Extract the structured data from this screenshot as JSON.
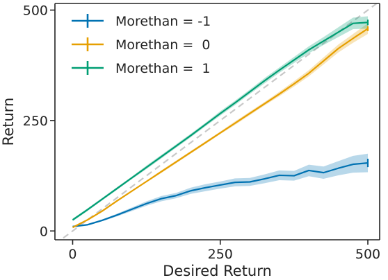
{
  "chart_data": {
    "type": "line",
    "title": "",
    "xlabel": "Desired Return",
    "ylabel": "Return",
    "xlim": [
      -30,
      520
    ],
    "ylim": [
      -20,
      515
    ],
    "grid": false,
    "legend_position": "top-left",
    "xticks": [
      0,
      250,
      500
    ],
    "yticks": [
      0,
      250,
      500
    ],
    "reference_line": {
      "style": "dashed",
      "color": "#c8c8c8",
      "points": [
        [
          -30,
          -30
        ],
        [
          520,
          520
        ]
      ]
    },
    "series": [
      {
        "name": "Morethan = -1",
        "color": "#0072b2",
        "x": [
          0,
          25,
          50,
          75,
          100,
          125,
          150,
          175,
          200,
          225,
          250,
          275,
          300,
          325,
          350,
          375,
          400,
          425,
          450,
          475,
          500
        ],
        "y": [
          10,
          14,
          24,
          36,
          49,
          62,
          73,
          80,
          91,
          98,
          104,
          110,
          111,
          118,
          126,
          125,
          137,
          132,
          142,
          151,
          154
        ],
        "spread": [
          2,
          2,
          2,
          3,
          4,
          5,
          6,
          6,
          7,
          8,
          8,
          9,
          9,
          10,
          11,
          11,
          13,
          14,
          16,
          19,
          21
        ]
      },
      {
        "name": "Morethan =  0",
        "color": "#e69f00",
        "x": [
          0,
          25,
          50,
          75,
          100,
          125,
          150,
          175,
          200,
          225,
          250,
          275,
          300,
          325,
          350,
          375,
          400,
          425,
          450,
          475,
          500
        ],
        "y": [
          8,
          25,
          45,
          68,
          90,
          112,
          134,
          156,
          178,
          200,
          222,
          244,
          266,
          288,
          310,
          333,
          357,
          385,
          413,
          436,
          458
        ],
        "spread": [
          2,
          2,
          2,
          2,
          2,
          2,
          3,
          3,
          3,
          3,
          3,
          4,
          4,
          4,
          5,
          6,
          7,
          8,
          9,
          10,
          12
        ]
      },
      {
        "name": "Morethan =  1",
        "color": "#009e73",
        "x": [
          0,
          25,
          50,
          75,
          100,
          125,
          150,
          175,
          200,
          225,
          250,
          275,
          300,
          325,
          350,
          375,
          400,
          425,
          450,
          475,
          500
        ],
        "y": [
          25,
          48,
          72,
          96,
          120,
          144,
          168,
          192,
          216,
          241,
          266,
          290,
          315,
          340,
          364,
          387,
          410,
          430,
          450,
          470,
          472
        ],
        "spread": [
          3,
          3,
          3,
          3,
          3,
          4,
          4,
          4,
          4,
          4,
          5,
          5,
          5,
          6,
          6,
          7,
          8,
          9,
          11,
          13,
          14
        ]
      }
    ]
  }
}
